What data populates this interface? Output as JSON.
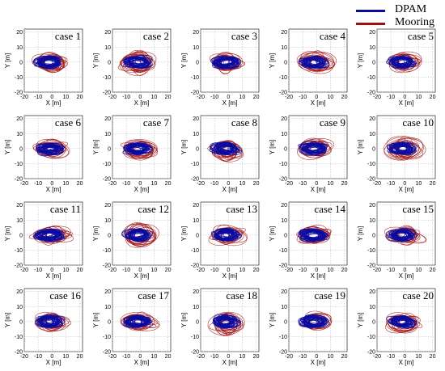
{
  "legend": [
    {
      "label": "DPAM",
      "color": "#0a0aa0"
    },
    {
      "label": "Mooring",
      "color": "#a01010"
    }
  ],
  "axes": {
    "xlabel": "X [m]",
    "ylabel": "Y [m]",
    "xticks": [
      -20,
      -10,
      0,
      10,
      20
    ],
    "yticks": [
      -20,
      -10,
      0,
      10,
      20
    ],
    "xlim": [
      -20,
      22
    ],
    "ylim": [
      -20,
      22
    ],
    "grid": true
  },
  "chart_data": [
    {
      "type": "scatter",
      "title": "case 1",
      "series": [
        {
          "name": "DPAM",
          "x_range": [
            -12,
            8
          ],
          "y_range": [
            -4,
            4
          ]
        },
        {
          "name": "Mooring",
          "x_range": [
            -14,
            12
          ],
          "y_range": [
            -7,
            6
          ]
        }
      ]
    },
    {
      "type": "scatter",
      "title": "case 2",
      "series": [
        {
          "name": "DPAM",
          "x_range": [
            -12,
            8
          ],
          "y_range": [
            -4,
            4
          ]
        },
        {
          "name": "Mooring",
          "x_range": [
            -15,
            12
          ],
          "y_range": [
            -8,
            7
          ]
        }
      ]
    },
    {
      "type": "scatter",
      "title": "case 3",
      "series": [
        {
          "name": "DPAM",
          "x_range": [
            -12,
            8
          ],
          "y_range": [
            -4,
            4
          ]
        },
        {
          "name": "Mooring",
          "x_range": [
            -13,
            12
          ],
          "y_range": [
            -7,
            6
          ]
        }
      ]
    },
    {
      "type": "scatter",
      "title": "case 4",
      "series": [
        {
          "name": "DPAM",
          "x_range": [
            -12,
            8
          ],
          "y_range": [
            -4,
            4
          ]
        },
        {
          "name": "Mooring",
          "x_range": [
            -14,
            13
          ],
          "y_range": [
            -7,
            7
          ]
        }
      ]
    },
    {
      "type": "scatter",
      "title": "case 5",
      "series": [
        {
          "name": "DPAM",
          "x_range": [
            -12,
            8
          ],
          "y_range": [
            -4,
            4
          ]
        },
        {
          "name": "Mooring",
          "x_range": [
            -12,
            12
          ],
          "y_range": [
            -6,
            6
          ]
        }
      ]
    },
    {
      "type": "scatter",
      "title": "case 6",
      "series": [
        {
          "name": "DPAM",
          "x_range": [
            -12,
            8
          ],
          "y_range": [
            -4,
            4
          ]
        },
        {
          "name": "Mooring",
          "x_range": [
            -13,
            12
          ],
          "y_range": [
            -6,
            6
          ]
        }
      ]
    },
    {
      "type": "scatter",
      "title": "case 7",
      "series": [
        {
          "name": "DPAM",
          "x_range": [
            -12,
            8
          ],
          "y_range": [
            -4,
            4
          ]
        },
        {
          "name": "Mooring",
          "x_range": [
            -14,
            13
          ],
          "y_range": [
            -7,
            6
          ]
        }
      ]
    },
    {
      "type": "scatter",
      "title": "case 8",
      "series": [
        {
          "name": "DPAM",
          "x_range": [
            -12,
            8
          ],
          "y_range": [
            -4,
            4
          ]
        },
        {
          "name": "Mooring",
          "x_range": [
            -14,
            12
          ],
          "y_range": [
            -8,
            6
          ]
        }
      ]
    },
    {
      "type": "scatter",
      "title": "case 9",
      "series": [
        {
          "name": "DPAM",
          "x_range": [
            -12,
            8
          ],
          "y_range": [
            -4,
            4
          ]
        },
        {
          "name": "Mooring",
          "x_range": [
            -14,
            12
          ],
          "y_range": [
            -7,
            7
          ]
        }
      ]
    },
    {
      "type": "scatter",
      "title": "case 10",
      "series": [
        {
          "name": "DPAM",
          "x_range": [
            -12,
            8
          ],
          "y_range": [
            -4,
            4
          ]
        },
        {
          "name": "Mooring",
          "x_range": [
            -15,
            14
          ],
          "y_range": [
            -8,
            8
          ]
        }
      ]
    },
    {
      "type": "scatter",
      "title": "case 11",
      "series": [
        {
          "name": "DPAM",
          "x_range": [
            -12,
            8
          ],
          "y_range": [
            -4,
            4
          ]
        },
        {
          "name": "Mooring",
          "x_range": [
            -15,
            14
          ],
          "y_range": [
            -6,
            6
          ]
        }
      ]
    },
    {
      "type": "scatter",
      "title": "case 12",
      "series": [
        {
          "name": "DPAM",
          "x_range": [
            -12,
            8
          ],
          "y_range": [
            -4,
            4
          ]
        },
        {
          "name": "Mooring",
          "x_range": [
            -14,
            13
          ],
          "y_range": [
            -8,
            7
          ]
        }
      ]
    },
    {
      "type": "scatter",
      "title": "case 13",
      "series": [
        {
          "name": "DPAM",
          "x_range": [
            -12,
            8
          ],
          "y_range": [
            -4,
            4
          ]
        },
        {
          "name": "Mooring",
          "x_range": [
            -14,
            12
          ],
          "y_range": [
            -6,
            6
          ]
        }
      ]
    },
    {
      "type": "scatter",
      "title": "case 14",
      "series": [
        {
          "name": "DPAM",
          "x_range": [
            -12,
            8
          ],
          "y_range": [
            -4,
            4
          ]
        },
        {
          "name": "Mooring",
          "x_range": [
            -14,
            12
          ],
          "y_range": [
            -6,
            6
          ]
        }
      ]
    },
    {
      "type": "scatter",
      "title": "case 15",
      "series": [
        {
          "name": "DPAM",
          "x_range": [
            -12,
            8
          ],
          "y_range": [
            -4,
            4
          ]
        },
        {
          "name": "Mooring",
          "x_range": [
            -14,
            14
          ],
          "y_range": [
            -7,
            6
          ]
        }
      ]
    },
    {
      "type": "scatter",
      "title": "case 16",
      "series": [
        {
          "name": "DPAM",
          "x_range": [
            -12,
            8
          ],
          "y_range": [
            -4,
            4
          ]
        },
        {
          "name": "Mooring",
          "x_range": [
            -13,
            12
          ],
          "y_range": [
            -7,
            6
          ]
        }
      ]
    },
    {
      "type": "scatter",
      "title": "case 17",
      "series": [
        {
          "name": "DPAM",
          "x_range": [
            -12,
            8
          ],
          "y_range": [
            -4,
            4
          ]
        },
        {
          "name": "Mooring",
          "x_range": [
            -15,
            12
          ],
          "y_range": [
            -6,
            6
          ]
        }
      ]
    },
    {
      "type": "scatter",
      "title": "case 18",
      "series": [
        {
          "name": "DPAM",
          "x_range": [
            -12,
            8
          ],
          "y_range": [
            -4,
            4
          ]
        },
        {
          "name": "Mooring",
          "x_range": [
            -14,
            13
          ],
          "y_range": [
            -10,
            6
          ]
        }
      ]
    },
    {
      "type": "scatter",
      "title": "case 19",
      "series": [
        {
          "name": "DPAM",
          "x_range": [
            -12,
            8
          ],
          "y_range": [
            -4,
            4
          ]
        },
        {
          "name": "Mooring",
          "x_range": [
            -13,
            12
          ],
          "y_range": [
            -6,
            6
          ]
        }
      ]
    },
    {
      "type": "scatter",
      "title": "case 20",
      "series": [
        {
          "name": "DPAM",
          "x_range": [
            -12,
            8
          ],
          "y_range": [
            -4,
            4
          ]
        },
        {
          "name": "Mooring",
          "x_range": [
            -14,
            12
          ],
          "y_range": [
            -8,
            6
          ]
        }
      ]
    }
  ]
}
